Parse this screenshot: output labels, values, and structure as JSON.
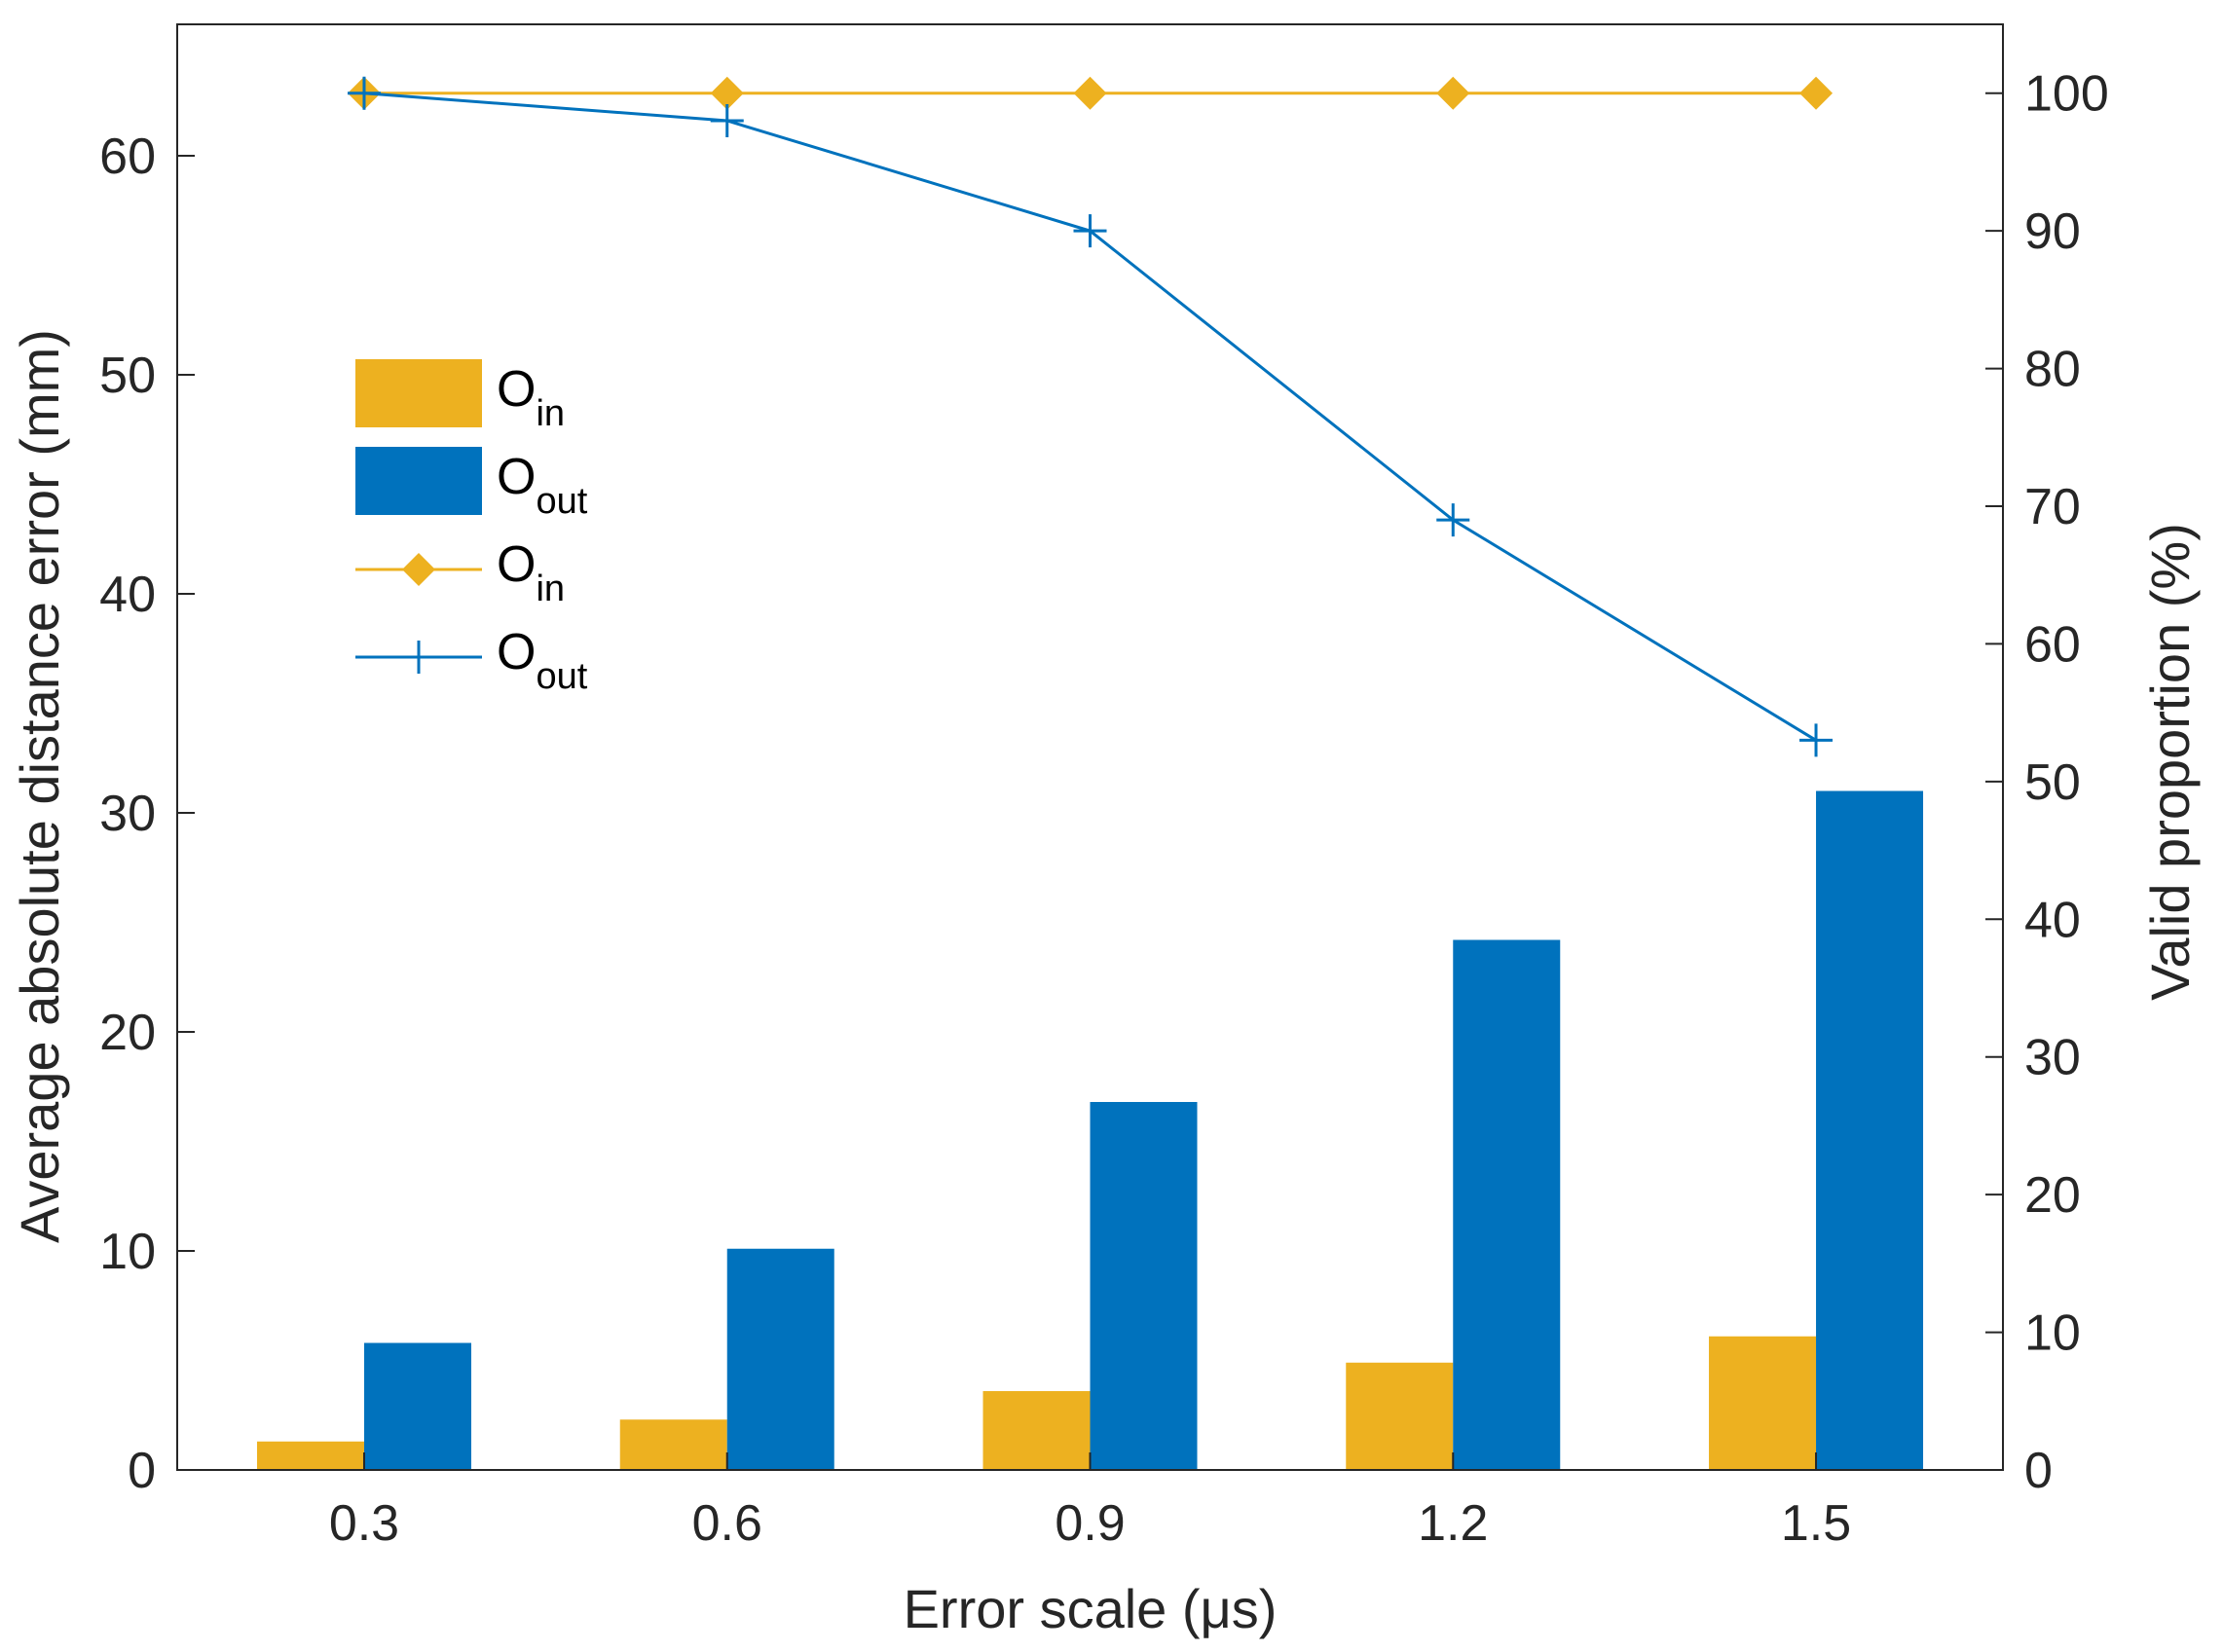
{
  "chart_data": {
    "type": "bar",
    "xlabel": "Error scale (μs)",
    "ylabel": "Average absolute distance error (mm)",
    "y2label": "Valid proportion (%)",
    "categories": [
      "0.3",
      "0.6",
      "0.9",
      "1.2",
      "1.5"
    ],
    "ylim": [
      0,
      66
    ],
    "y2lim": [
      0,
      105
    ],
    "yticks": [
      "0",
      "10",
      "20",
      "30",
      "40",
      "50",
      "60"
    ],
    "y2ticks": [
      "0",
      "10",
      "20",
      "30",
      "40",
      "50",
      "60",
      "70",
      "80",
      "90",
      "100"
    ],
    "bar_series": [
      {
        "name": "O",
        "subscript": "in",
        "color": "#EDB120",
        "values": [
          1.3,
          2.3,
          3.6,
          4.9,
          6.1
        ]
      },
      {
        "name": "O",
        "subscript": "out",
        "color": "#0072BD",
        "values": [
          5.8,
          10.1,
          16.8,
          24.2,
          31.0
        ]
      }
    ],
    "line_series": [
      {
        "name": "O",
        "subscript": "in",
        "color": "#EDB120",
        "marker": "diamond",
        "values": [
          100,
          100,
          100,
          100,
          100
        ]
      },
      {
        "name": "O",
        "subscript": "out",
        "color": "#0072BD",
        "marker": "plus",
        "values": [
          100,
          98,
          90,
          69,
          53
        ]
      }
    ],
    "legend_position": "upper-left",
    "grid": false
  }
}
